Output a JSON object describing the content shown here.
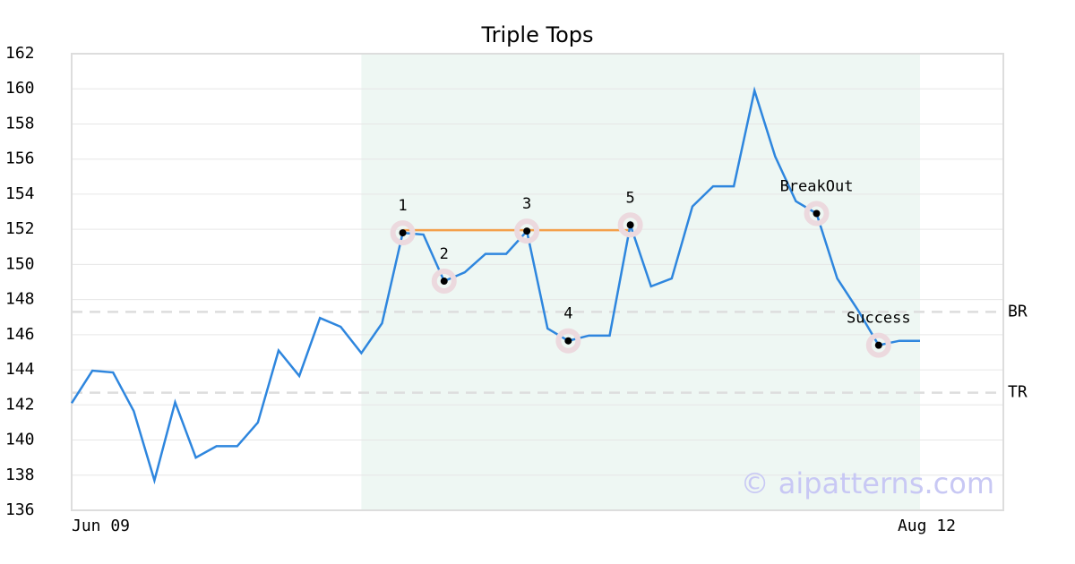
{
  "chart_data": {
    "type": "line",
    "title": "Triple Tops",
    "categories": [
      "Jun 09",
      null,
      null,
      null,
      null,
      null,
      null,
      null,
      null,
      null,
      null,
      null,
      null,
      null,
      null,
      null,
      null,
      null,
      null,
      null,
      null,
      null,
      null,
      null,
      null,
      null,
      null,
      null,
      null,
      null,
      null,
      null,
      null,
      null,
      null,
      null,
      null,
      null,
      null,
      null,
      null,
      "Aug 12"
    ],
    "series": [
      {
        "color": "#2e86de",
        "values": [
          142.1,
          143.95,
          143.85,
          141.65,
          137.7,
          142.15,
          139.0,
          139.65,
          139.65,
          141.0,
          145.1,
          143.65,
          146.95,
          146.45,
          144.95,
          146.65,
          151.8,
          151.7,
          149.05,
          149.55,
          150.6,
          150.6,
          151.9,
          146.35,
          145.65,
          145.95,
          145.95,
          152.25,
          148.75,
          149.2,
          153.3,
          154.45,
          154.45,
          159.9,
          156.15,
          153.6,
          152.9,
          149.2,
          147.4,
          145.4,
          145.65,
          145.65
        ]
      }
    ],
    "ylim": [
      136,
      162
    ],
    "yticks": [
      136,
      138,
      140,
      142,
      144,
      146,
      148,
      150,
      152,
      154,
      156,
      158,
      160,
      162
    ],
    "grid": true,
    "pattern_span": {
      "from": 14,
      "to": 41,
      "color": "#eef7f3"
    },
    "points": [
      {
        "label": "1",
        "index": 16
      },
      {
        "label": "2",
        "index": 18
      },
      {
        "label": "3",
        "index": 22
      },
      {
        "label": "4",
        "index": 24
      },
      {
        "label": "5",
        "index": 27
      },
      {
        "label": "BreakOut",
        "index": 36
      },
      {
        "label": "Success",
        "index": 39
      }
    ],
    "top_line": {
      "from": 16,
      "to": 27,
      "value": 151.95,
      "color": "#f4a04a"
    },
    "levels": [
      {
        "label": "BR",
        "value": 147.3
      },
      {
        "label": "TR",
        "value": 142.7
      }
    ],
    "watermark": "© aipatterns.com"
  }
}
